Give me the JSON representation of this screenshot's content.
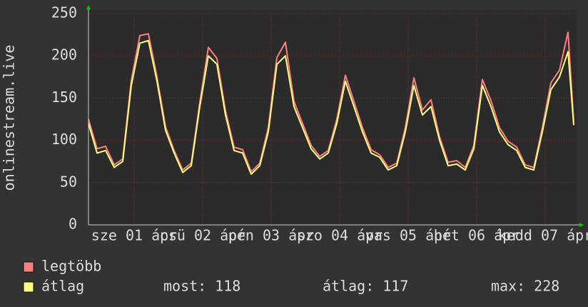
{
  "chart_data": {
    "type": "line",
    "y_label": "onlinestream.live",
    "x": [
      0,
      3,
      6,
      9,
      12,
      15,
      18,
      21,
      24,
      27,
      30,
      33,
      36,
      39,
      42,
      45,
      48,
      51,
      54,
      57,
      60,
      63,
      66,
      69,
      72,
      75,
      78,
      81,
      84,
      87,
      90,
      93,
      96,
      99,
      102,
      105,
      108,
      111,
      114,
      117,
      120,
      123,
      126,
      129,
      132,
      135,
      138,
      141,
      144,
      147,
      150,
      153,
      156,
      159,
      162,
      165,
      168,
      170
    ],
    "xlim": [
      0,
      171
    ],
    "xticks": [
      {
        "value": 16,
        "label": "sze 01 ápr"
      },
      {
        "value": 40,
        "label": "csü 02 ápr"
      },
      {
        "value": 64,
        "label": "pén 03 ápr"
      },
      {
        "value": 88,
        "label": "szo 04 ápr"
      },
      {
        "value": 112,
        "label": "vas 05 ápr"
      },
      {
        "value": 136,
        "label": "hét 06 ápr"
      },
      {
        "value": 160,
        "label": "kedd 07 ápr"
      }
    ],
    "ylim": [
      0,
      250
    ],
    "yticks": [
      0,
      50,
      100,
      150,
      200,
      250
    ],
    "grid": true,
    "series": [
      {
        "name": "legtöbb",
        "color": "#ff7f7f",
        "values": [
          125,
          90,
          93,
          71,
          78,
          171,
          224,
          226,
          175,
          116,
          88,
          65,
          73,
          145,
          210,
          197,
          135,
          92,
          89,
          63,
          73,
          115,
          198,
          216,
          146,
          120,
          94,
          81,
          88,
          125,
          177,
          146,
          115,
          89,
          83,
          68,
          73,
          115,
          174,
          136,
          148,
          104,
          74,
          76,
          68,
          94,
          172,
          147,
          115,
          99,
          92,
          71,
          68,
          115,
          168,
          183,
          228,
          122
        ]
      },
      {
        "name": "átlag",
        "color": "#ffff7f",
        "values": [
          120,
          85,
          88,
          68,
          75,
          165,
          215,
          218,
          170,
          112,
          85,
          62,
          70,
          140,
          200,
          190,
          130,
          88,
          85,
          60,
          70,
          110,
          190,
          200,
          140,
          115,
          90,
          78,
          85,
          120,
          170,
          140,
          110,
          85,
          80,
          65,
          70,
          110,
          165,
          130,
          140,
          100,
          70,
          72,
          65,
          90,
          165,
          140,
          110,
          95,
          88,
          68,
          65,
          110,
          160,
          175,
          205,
          118
        ]
      }
    ],
    "stats": [
      {
        "label": "most:",
        "value": 118
      },
      {
        "label": "átlag:",
        "value": 117
      },
      {
        "label": "max:",
        "value": 228
      }
    ]
  }
}
